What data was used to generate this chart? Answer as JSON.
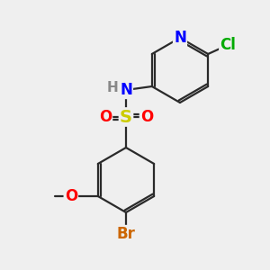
{
  "bg_color": "#efefef",
  "bond_color": "#2a2a2a",
  "atom_colors": {
    "N": "#0000ff",
    "O": "#ff0000",
    "S": "#cccc00",
    "Cl": "#00aa00",
    "Br": "#cc6600",
    "C": "#2a2a2a",
    "H": "#888888"
  },
  "figsize": [
    3.0,
    3.0
  ],
  "dpi": 100
}
